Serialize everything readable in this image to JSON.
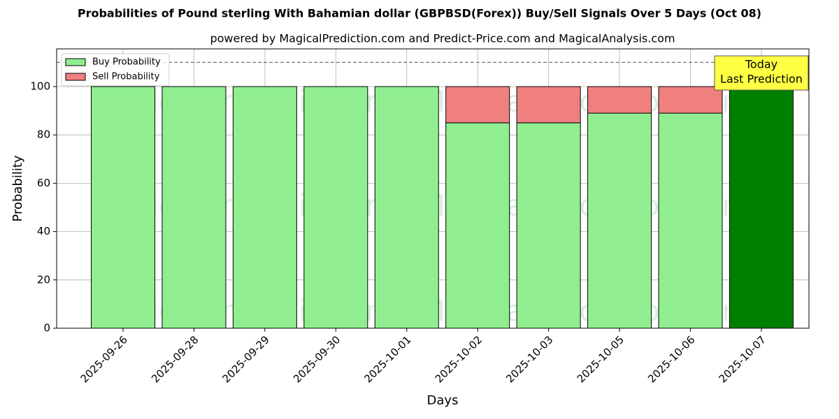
{
  "chart_data": {
    "type": "stacked_bar",
    "title": "Probabilities of Pound sterling With Bahamian dollar (GBPBSD(Forex)) Buy/Sell Signals Over 5 Days (Oct 08)",
    "subtitle": "powered by MagicalPrediction.com and Predict-Price.com and MagicalAnalysis.com",
    "x_label": "Days",
    "y_label": "Probability",
    "categories": [
      "2025-09-26",
      "2025-09-28",
      "2025-09-29",
      "2025-09-30",
      "2025-10-01",
      "2025-10-02",
      "2025-10-03",
      "2025-10-05",
      "2025-10-06",
      "2025-10-07"
    ],
    "series": [
      {
        "name": "Buy Probability",
        "color": "#90ee90",
        "values": [
          100,
          100,
          100,
          100,
          100,
          85,
          85,
          89,
          89,
          100
        ],
        "colors": [
          "#90ee90",
          "#90ee90",
          "#90ee90",
          "#90ee90",
          "#90ee90",
          "#90ee90",
          "#90ee90",
          "#90ee90",
          "#90ee90",
          "#008000"
        ]
      },
      {
        "name": "Sell Probability",
        "color": "#f08080",
        "values": [
          0,
          0,
          0,
          0,
          0,
          15,
          15,
          11,
          11,
          0
        ]
      }
    ],
    "ylim": [
      0,
      115.6
    ],
    "yticks": [
      0,
      20,
      40,
      60,
      80,
      100
    ],
    "grid": true,
    "legend": "upper left",
    "hline": 110,
    "annotation": [
      "Today",
      "Last Prediction"
    ],
    "watermarks": [
      "MagicalAnalysis.com",
      "MagicalPrediction.com"
    ]
  }
}
